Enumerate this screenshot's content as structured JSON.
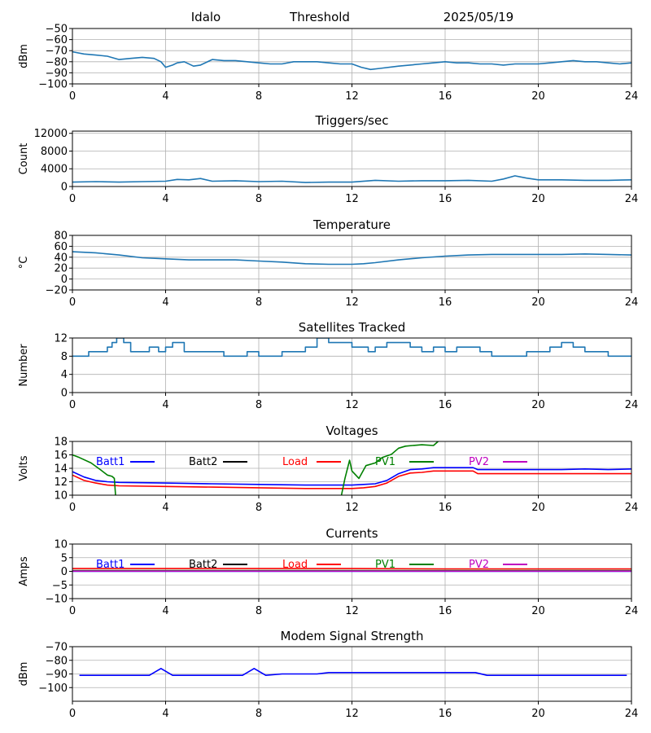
{
  "header": {
    "station": "Idalo",
    "mode": "Threshold",
    "date": "2025/05/19"
  },
  "chart_data": [
    {
      "type": "line",
      "title": "",
      "ylabel": "dBm",
      "xlabel": "",
      "xlim": [
        0,
        24
      ],
      "ylim": [
        -100,
        -50
      ],
      "xticks": [
        "0",
        "4",
        "8",
        "12",
        "16",
        "20",
        "24"
      ],
      "yticks": [
        "-100",
        "-90",
        "-80",
        "-70",
        "-60",
        "-50"
      ],
      "grid": true,
      "series": [
        {
          "color": "#1f77b4",
          "x": [
            0,
            0.5,
            1,
            1.5,
            2,
            2.5,
            3,
            3.5,
            3.8,
            4,
            4.3,
            4.5,
            4.8,
            5.2,
            5.5,
            6,
            6.5,
            7,
            7.5,
            8,
            8.5,
            9,
            9.5,
            10,
            10.5,
            11,
            11.5,
            12,
            12.4,
            12.8,
            13.2,
            14,
            15,
            15.5,
            16,
            16.5,
            17,
            17.5,
            18,
            18.5,
            19,
            19.5,
            20,
            20.5,
            21,
            21.5,
            22,
            22.5,
            23,
            23.5,
            24
          ],
          "y": [
            -71,
            -73,
            -74,
            -75,
            -78,
            -77,
            -76,
            -77,
            -80,
            -85,
            -83,
            -81,
            -80,
            -84,
            -83,
            -78,
            -79,
            -79,
            -80,
            -81,
            -82,
            -82,
            -80,
            -80,
            -80,
            -81,
            -82,
            -82,
            -85,
            -87,
            -86,
            -84,
            -82,
            -81,
            -80,
            -81,
            -81,
            -82,
            -82,
            -83,
            -82,
            -82,
            -82,
            -81,
            -80,
            -79,
            -80,
            -80,
            -81,
            -82,
            -81
          ]
        }
      ]
    },
    {
      "type": "line",
      "title": "Triggers/sec",
      "ylabel": "Count",
      "xlabel": "",
      "xlim": [
        0,
        24
      ],
      "ylim": [
        0,
        12500
      ],
      "xticks": [
        "0",
        "4",
        "8",
        "12",
        "16",
        "20",
        "24"
      ],
      "yticks": [
        "0",
        "4000",
        "8000",
        "12000"
      ],
      "grid": true,
      "series": [
        {
          "color": "#1f77b4",
          "x": [
            0,
            1,
            2,
            3,
            4,
            4.5,
            5,
            5.5,
            6,
            7,
            8,
            9,
            10,
            11,
            12,
            13,
            14,
            15,
            16,
            17,
            18,
            18.5,
            19,
            19.5,
            20,
            21,
            22,
            23,
            24
          ],
          "y": [
            1000,
            1100,
            1000,
            1100,
            1200,
            1600,
            1500,
            1800,
            1200,
            1300,
            1100,
            1200,
            900,
            1000,
            1000,
            1400,
            1200,
            1300,
            1300,
            1400,
            1200,
            1700,
            2400,
            1900,
            1500,
            1500,
            1400,
            1400,
            1500
          ]
        }
      ]
    },
    {
      "type": "line",
      "title": "Temperature",
      "ylabel": "°C",
      "xlabel": "",
      "xlim": [
        0,
        24
      ],
      "ylim": [
        -20,
        80
      ],
      "xticks": [
        "0",
        "4",
        "8",
        "12",
        "16",
        "20",
        "24"
      ],
      "yticks": [
        "-20",
        "0",
        "20",
        "40",
        "60",
        "80"
      ],
      "grid": true,
      "series": [
        {
          "color": "#1f77b4",
          "x": [
            0,
            1,
            2,
            3,
            4,
            5,
            6,
            7,
            8,
            9,
            10,
            11,
            12,
            12.5,
            13,
            14,
            15,
            16,
            17,
            18,
            19,
            20,
            21,
            22,
            23,
            24
          ],
          "y": [
            50,
            48,
            44,
            39,
            37,
            35,
            35,
            35,
            33,
            31,
            28,
            27,
            27,
            28,
            30,
            35,
            39,
            42,
            44,
            45,
            45,
            45,
            45,
            46,
            45,
            44
          ]
        }
      ]
    },
    {
      "type": "line",
      "title": "Satellites Tracked",
      "ylabel": "Number",
      "xlabel": "",
      "xlim": [
        0,
        24
      ],
      "ylim": [
        0,
        12
      ],
      "xticks": [
        "0",
        "4",
        "8",
        "12",
        "16",
        "20",
        "24"
      ],
      "yticks": [
        "0",
        "4",
        "8",
        "12"
      ],
      "grid": true,
      "series": [
        {
          "color": "#1f77b4",
          "step": true,
          "x": [
            0,
            0.5,
            0.7,
            1.5,
            1.7,
            1.9,
            2.2,
            2.5,
            3.0,
            3.3,
            3.7,
            4.0,
            4.3,
            4.8,
            5.0,
            5.5,
            6.0,
            6.5,
            7.0,
            7.5,
            8.0,
            8.5,
            9.0,
            9.5,
            10.0,
            10.5,
            11.0,
            11.5,
            12.0,
            12.3,
            12.7,
            13.0,
            13.5,
            14.0,
            14.5,
            15.0,
            15.5,
            16.0,
            16.5,
            17.0,
            17.5,
            18.0,
            18.5,
            19.0,
            19.5,
            20.0,
            20.5,
            21.0,
            21.5,
            22.0,
            22.5,
            23.0,
            23.5,
            24
          ],
          "y": [
            8,
            8,
            9,
            10,
            11,
            12,
            11,
            9,
            9,
            10,
            9,
            10,
            11,
            9,
            9,
            9,
            9,
            8,
            8,
            9,
            8,
            8,
            9,
            9,
            10,
            12,
            11,
            11,
            10,
            10,
            9,
            10,
            11,
            11,
            10,
            9,
            10,
            9,
            10,
            10,
            9,
            8,
            8,
            8,
            9,
            9,
            10,
            11,
            10,
            9,
            9,
            8,
            8,
            8
          ]
        }
      ]
    },
    {
      "type": "line",
      "title": "Voltages",
      "ylabel": "Volts",
      "xlabel": "",
      "xlim": [
        0,
        24
      ],
      "ylim": [
        10,
        18
      ],
      "xticks": [
        "0",
        "4",
        "8",
        "12",
        "16",
        "20",
        "24"
      ],
      "yticks": [
        "10",
        "12",
        "14",
        "16",
        "18"
      ],
      "grid": true,
      "legend": [
        "Batt1",
        "Batt2",
        "Load",
        "PV1",
        "PV2"
      ],
      "series": [
        {
          "name": "Batt1",
          "color": "#0000ff",
          "x": [
            0,
            0.5,
            1,
            1.5,
            2,
            4,
            6,
            8,
            10,
            11.5,
            12,
            12.5,
            13,
            13.5,
            14,
            14.5,
            15,
            15.5,
            16,
            17,
            17.2,
            17.4,
            18,
            19,
            20,
            21,
            22,
            23,
            24
          ],
          "y": [
            13.5,
            12.7,
            12.2,
            12,
            11.9,
            11.8,
            11.7,
            11.6,
            11.5,
            11.5,
            11.5,
            11.6,
            11.7,
            12.2,
            13.2,
            13.8,
            13.9,
            14.1,
            14.1,
            14.1,
            14.1,
            13.8,
            13.8,
            13.8,
            13.8,
            13.8,
            13.9,
            13.8,
            13.9
          ]
        },
        {
          "name": "Load",
          "color": "#ff0000",
          "x": [
            0,
            0.5,
            1,
            1.5,
            2,
            4,
            6,
            8,
            10,
            11.5,
            12,
            12.5,
            13,
            13.5,
            14,
            14.5,
            15,
            15.5,
            16,
            17,
            17.2,
            17.4,
            18,
            19,
            20,
            21,
            22,
            23,
            24
          ],
          "y": [
            13,
            12.2,
            11.8,
            11.5,
            11.4,
            11.3,
            11.2,
            11.1,
            11,
            11,
            11,
            11.1,
            11.3,
            11.8,
            12.8,
            13.3,
            13.4,
            13.6,
            13.6,
            13.6,
            13.6,
            13.2,
            13.2,
            13.2,
            13.2,
            13.2,
            13.2,
            13.2,
            13.2
          ]
        },
        {
          "name": "PV1",
          "color": "#008000",
          "x": [
            0,
            0.3,
            0.8,
            1.2,
            1.5,
            1.7,
            1.8,
            1.85
          ],
          "y": [
            16,
            15.6,
            14.8,
            13.8,
            13,
            12.8,
            12.5,
            10
          ]
        },
        {
          "name": "PV1",
          "color": "#008000",
          "x": [
            11.55,
            11.7,
            11.9,
            12.0,
            12.3,
            12.6,
            13.0,
            13.3,
            13.7,
            14.0,
            14.3,
            14.6,
            15.0,
            15.5,
            15.7
          ],
          "y": [
            10,
            12.5,
            15.2,
            13.6,
            12.5,
            14.4,
            14.8,
            15.6,
            16.1,
            17.0,
            17.3,
            17.4,
            17.5,
            17.4,
            18
          ]
        }
      ]
    },
    {
      "type": "line",
      "title": "Currents",
      "ylabel": "Amps",
      "xlabel": "",
      "xlim": [
        0,
        24
      ],
      "ylim": [
        -10,
        10
      ],
      "xticks": [
        "0",
        "4",
        "8",
        "12",
        "16",
        "20",
        "24"
      ],
      "yticks": [
        "-10",
        "-5",
        "0",
        "5",
        "10"
      ],
      "grid": true,
      "legend": [
        "Batt1",
        "Batt2",
        "Load",
        "PV1",
        "PV2"
      ],
      "series": [
        {
          "name": "Load",
          "color": "#ff0000",
          "x": [
            0,
            4,
            8,
            12,
            16,
            20,
            24
          ],
          "y": [
            1.0,
            1.0,
            1.0,
            1.0,
            0.9,
            0.9,
            0.9
          ]
        },
        {
          "name": "PV1",
          "color": "#008000",
          "x": [
            0,
            24
          ],
          "y": [
            0.3,
            0.3
          ]
        },
        {
          "name": "Batt1",
          "color": "#0000ff",
          "x": [
            0,
            24
          ],
          "y": [
            0.0,
            0.0
          ]
        },
        {
          "name": "PV2",
          "color": "#bf00bf",
          "x": [
            0,
            24
          ],
          "y": [
            0.1,
            0.1
          ]
        }
      ]
    },
    {
      "type": "line",
      "title": "Modem Signal Strength",
      "ylabel": "dBm",
      "xlabel": "",
      "xlim": [
        0,
        24
      ],
      "ylim": [
        -110,
        -70
      ],
      "xticks": [
        "0",
        "4",
        "8",
        "12",
        "16",
        "20",
        "24"
      ],
      "yticks": [
        "-100",
        "-90",
        "-80",
        "-70"
      ],
      "grid": true,
      "series": [
        {
          "color": "#0000ff",
          "x": [
            0.3,
            3.3,
            3.8,
            4.3,
            7.3,
            7.8,
            8.3,
            9,
            10.5,
            11,
            12,
            13,
            14,
            15,
            16,
            17.3,
            17.8,
            18.5,
            20,
            22,
            23.8
          ],
          "y": [
            -91,
            -91,
            -86,
            -91,
            -91,
            -86,
            -91,
            -90,
            -90,
            -89,
            -89,
            -89,
            -89,
            -89,
            -89,
            -89,
            -91,
            -91,
            -91,
            -91,
            -91
          ]
        }
      ]
    }
  ]
}
